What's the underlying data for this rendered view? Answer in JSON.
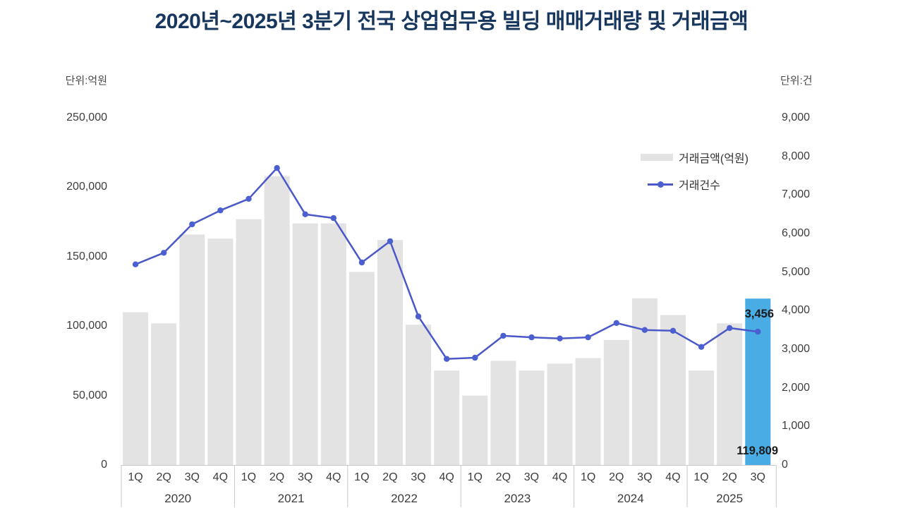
{
  "title": "2020년~2025년 3분기 전국 상업업무용 빌딩 매매거래량 및 거래금액",
  "chart_data": {
    "type": "combo",
    "grid": false,
    "legend_position": "upper-right",
    "axes": {
      "left": {
        "unit": "단위:억원",
        "max": 250000,
        "min": 0,
        "ticks": [
          "250,000",
          "200,000",
          "150,000",
          "100,000",
          "50,000",
          "0"
        ]
      },
      "right": {
        "unit": "단위:건",
        "max": 9000,
        "min": 0,
        "ticks": [
          "9,000",
          "8,000",
          "7,000",
          "6,000",
          "5,000",
          "4,000",
          "3,000",
          "2,000",
          "1,000",
          "0"
        ]
      }
    },
    "groups": [
      {
        "year": "2020",
        "quarters": [
          "1Q",
          "2Q",
          "3Q",
          "4Q"
        ]
      },
      {
        "year": "2021",
        "quarters": [
          "1Q",
          "2Q",
          "3Q",
          "4Q"
        ]
      },
      {
        "year": "2022",
        "quarters": [
          "1Q",
          "2Q",
          "3Q",
          "4Q"
        ]
      },
      {
        "year": "2023",
        "quarters": [
          "1Q",
          "2Q",
          "3Q",
          "4Q"
        ]
      },
      {
        "year": "2024",
        "quarters": [
          "1Q",
          "2Q",
          "3Q",
          "4Q"
        ]
      },
      {
        "year": "2025",
        "quarters": [
          "1Q",
          "2Q",
          "3Q"
        ]
      }
    ],
    "series": [
      {
        "name": "거래금액(억원)",
        "kind": "bar",
        "axis": "left",
        "values": [
          110000,
          102000,
          166000,
          163000,
          177000,
          208000,
          174000,
          174000,
          139000,
          162000,
          101000,
          68000,
          50000,
          75000,
          68000,
          73000,
          77000,
          90000,
          120000,
          108000,
          68000,
          102000,
          119809
        ]
      },
      {
        "name": "거래건수",
        "kind": "line",
        "axis": "right",
        "values": [
          5200,
          5500,
          6240,
          6600,
          6900,
          7700,
          6500,
          6400,
          5250,
          5800,
          3850,
          2750,
          2780,
          3350,
          3310,
          3280,
          3310,
          3680,
          3500,
          3480,
          3060,
          3550,
          3456
        ]
      }
    ],
    "highlight": {
      "index": 22,
      "bar_label": "119,809",
      "line_label": "3,456"
    },
    "legend": {
      "amount": "거래금액(억원)",
      "count": "거래건수"
    },
    "colors": {
      "bar": "#e3e3e3",
      "bar_highlight": "#49ace4",
      "line": "#4b58c8",
      "marker": "#4b5fd0",
      "title": "#17375e",
      "axis_line": "#c9c9c9",
      "tick_text": "#3d3d3d",
      "annotation_text": "#1a1a1a"
    }
  }
}
